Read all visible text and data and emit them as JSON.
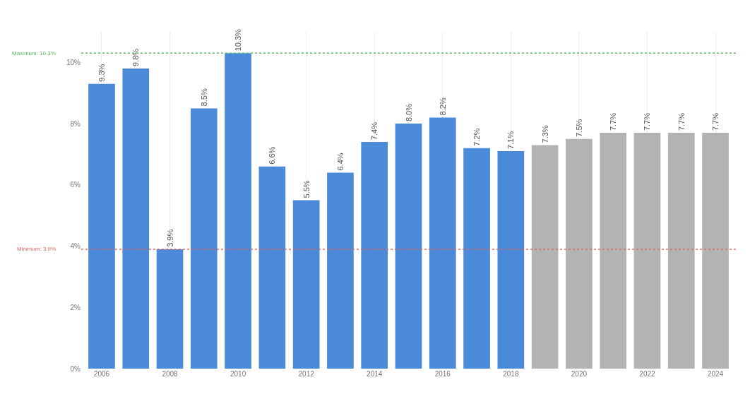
{
  "chart_data": {
    "type": "bar",
    "categories": [
      "2006",
      null,
      "2008",
      null,
      "2010",
      null,
      "2012",
      null,
      "2014",
      null,
      "2016",
      null,
      "2018",
      null,
      "2020",
      null,
      "2022",
      null,
      "2024"
    ],
    "values": [
      9.3,
      9.8,
      3.9,
      8.5,
      10.3,
      6.6,
      5.5,
      6.4,
      7.4,
      8.0,
      8.2,
      7.2,
      7.1,
      7.3,
      7.5,
      7.7,
      7.7,
      7.7,
      7.7
    ],
    "colors": [
      "#4a8ad9",
      "#4a8ad9",
      "#4a8ad9",
      "#4a8ad9",
      "#4a8ad9",
      "#4a8ad9",
      "#4a8ad9",
      "#4a8ad9",
      "#4a8ad9",
      "#4a8ad9",
      "#4a8ad9",
      "#4a8ad9",
      "#4a8ad9",
      "#b3b3b3",
      "#b3b3b3",
      "#b3b3b3",
      "#b3b3b3",
      "#b3b3b3",
      "#b3b3b3"
    ],
    "value_labels": [
      "9.3%",
      "9.8%",
      "3.9%",
      "8.5%",
      "10.3%",
      "6.6%",
      "5.5%",
      "6.4%",
      "7.4%",
      "8.0%",
      "8.2%",
      "7.2%",
      "7.1%",
      "7.3%",
      "7.5%",
      "7.7%",
      "7.7%",
      "7.7%",
      "7.7%"
    ],
    "ylim": [
      0,
      11
    ],
    "yticks": [
      {
        "value": 0,
        "label": "0%"
      },
      {
        "value": 2,
        "label": "2%"
      },
      {
        "value": 4,
        "label": "4%"
      },
      {
        "value": 6,
        "label": "6%"
      },
      {
        "value": 8,
        "label": "8%"
      },
      {
        "value": 10,
        "label": "10%"
      }
    ],
    "ref_lines": [
      {
        "axis": "y",
        "value": 10.3,
        "label": "Maximum: 10.3%",
        "color": "#5cb85c",
        "line_style": "dotted"
      },
      {
        "axis": "y",
        "value": 3.9,
        "label": "Minimum: 3.9%",
        "color": "#e06666",
        "line_style": "dotted"
      }
    ],
    "grid": "x"
  }
}
